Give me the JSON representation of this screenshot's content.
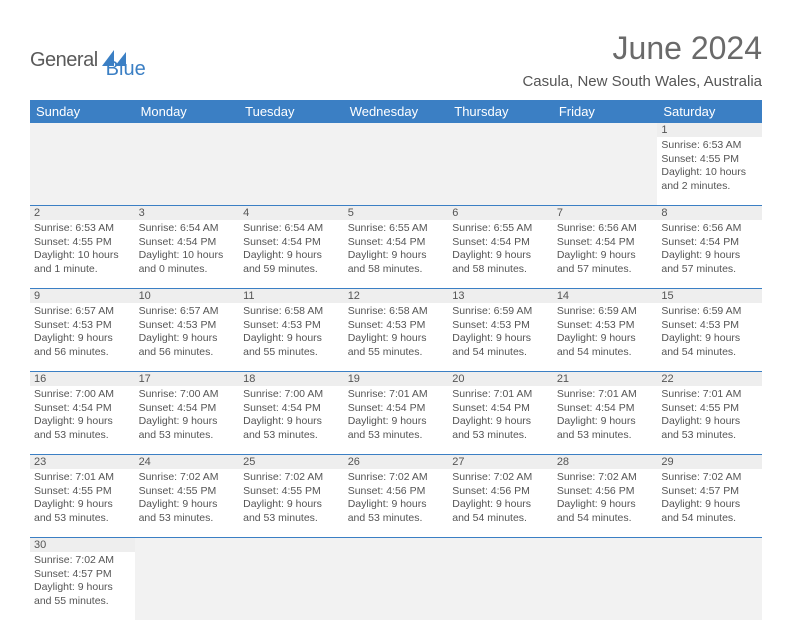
{
  "logo": {
    "text1": "General",
    "text2": "Blue"
  },
  "title": "June 2024",
  "location": "Casula, New South Wales, Australia",
  "dayNames": [
    "Sunday",
    "Monday",
    "Tuesday",
    "Wednesday",
    "Thursday",
    "Friday",
    "Saturday"
  ],
  "colors": {
    "header_bg": "#3b7fc4",
    "header_text": "#ffffff",
    "daynum_bg": "#eeeeee",
    "cell_text": "#555555",
    "logo_gray": "#5a5a5a",
    "logo_blue": "#3b7fc4"
  },
  "weeks": [
    [
      null,
      null,
      null,
      null,
      null,
      null,
      {
        "n": "1",
        "sr": "6:53 AM",
        "ss": "4:55 PM",
        "dl": "10 hours and 2 minutes."
      }
    ],
    [
      {
        "n": "2",
        "sr": "6:53 AM",
        "ss": "4:55 PM",
        "dl": "10 hours and 1 minute."
      },
      {
        "n": "3",
        "sr": "6:54 AM",
        "ss": "4:54 PM",
        "dl": "10 hours and 0 minutes."
      },
      {
        "n": "4",
        "sr": "6:54 AM",
        "ss": "4:54 PM",
        "dl": "9 hours and 59 minutes."
      },
      {
        "n": "5",
        "sr": "6:55 AM",
        "ss": "4:54 PM",
        "dl": "9 hours and 58 minutes."
      },
      {
        "n": "6",
        "sr": "6:55 AM",
        "ss": "4:54 PM",
        "dl": "9 hours and 58 minutes."
      },
      {
        "n": "7",
        "sr": "6:56 AM",
        "ss": "4:54 PM",
        "dl": "9 hours and 57 minutes."
      },
      {
        "n": "8",
        "sr": "6:56 AM",
        "ss": "4:54 PM",
        "dl": "9 hours and 57 minutes."
      }
    ],
    [
      {
        "n": "9",
        "sr": "6:57 AM",
        "ss": "4:53 PM",
        "dl": "9 hours and 56 minutes."
      },
      {
        "n": "10",
        "sr": "6:57 AM",
        "ss": "4:53 PM",
        "dl": "9 hours and 56 minutes."
      },
      {
        "n": "11",
        "sr": "6:58 AM",
        "ss": "4:53 PM",
        "dl": "9 hours and 55 minutes."
      },
      {
        "n": "12",
        "sr": "6:58 AM",
        "ss": "4:53 PM",
        "dl": "9 hours and 55 minutes."
      },
      {
        "n": "13",
        "sr": "6:59 AM",
        "ss": "4:53 PM",
        "dl": "9 hours and 54 minutes."
      },
      {
        "n": "14",
        "sr": "6:59 AM",
        "ss": "4:53 PM",
        "dl": "9 hours and 54 minutes."
      },
      {
        "n": "15",
        "sr": "6:59 AM",
        "ss": "4:53 PM",
        "dl": "9 hours and 54 minutes."
      }
    ],
    [
      {
        "n": "16",
        "sr": "7:00 AM",
        "ss": "4:54 PM",
        "dl": "9 hours and 53 minutes."
      },
      {
        "n": "17",
        "sr": "7:00 AM",
        "ss": "4:54 PM",
        "dl": "9 hours and 53 minutes."
      },
      {
        "n": "18",
        "sr": "7:00 AM",
        "ss": "4:54 PM",
        "dl": "9 hours and 53 minutes."
      },
      {
        "n": "19",
        "sr": "7:01 AM",
        "ss": "4:54 PM",
        "dl": "9 hours and 53 minutes."
      },
      {
        "n": "20",
        "sr": "7:01 AM",
        "ss": "4:54 PM",
        "dl": "9 hours and 53 minutes."
      },
      {
        "n": "21",
        "sr": "7:01 AM",
        "ss": "4:54 PM",
        "dl": "9 hours and 53 minutes."
      },
      {
        "n": "22",
        "sr": "7:01 AM",
        "ss": "4:55 PM",
        "dl": "9 hours and 53 minutes."
      }
    ],
    [
      {
        "n": "23",
        "sr": "7:01 AM",
        "ss": "4:55 PM",
        "dl": "9 hours and 53 minutes."
      },
      {
        "n": "24",
        "sr": "7:02 AM",
        "ss": "4:55 PM",
        "dl": "9 hours and 53 minutes."
      },
      {
        "n": "25",
        "sr": "7:02 AM",
        "ss": "4:55 PM",
        "dl": "9 hours and 53 minutes."
      },
      {
        "n": "26",
        "sr": "7:02 AM",
        "ss": "4:56 PM",
        "dl": "9 hours and 53 minutes."
      },
      {
        "n": "27",
        "sr": "7:02 AM",
        "ss": "4:56 PM",
        "dl": "9 hours and 54 minutes."
      },
      {
        "n": "28",
        "sr": "7:02 AM",
        "ss": "4:56 PM",
        "dl": "9 hours and 54 minutes."
      },
      {
        "n": "29",
        "sr": "7:02 AM",
        "ss": "4:57 PM",
        "dl": "9 hours and 54 minutes."
      }
    ],
    [
      {
        "n": "30",
        "sr": "7:02 AM",
        "ss": "4:57 PM",
        "dl": "9 hours and 55 minutes."
      },
      null,
      null,
      null,
      null,
      null,
      null
    ]
  ],
  "labels": {
    "sunrise": "Sunrise: ",
    "sunset": "Sunset: ",
    "daylight": "Daylight: "
  }
}
